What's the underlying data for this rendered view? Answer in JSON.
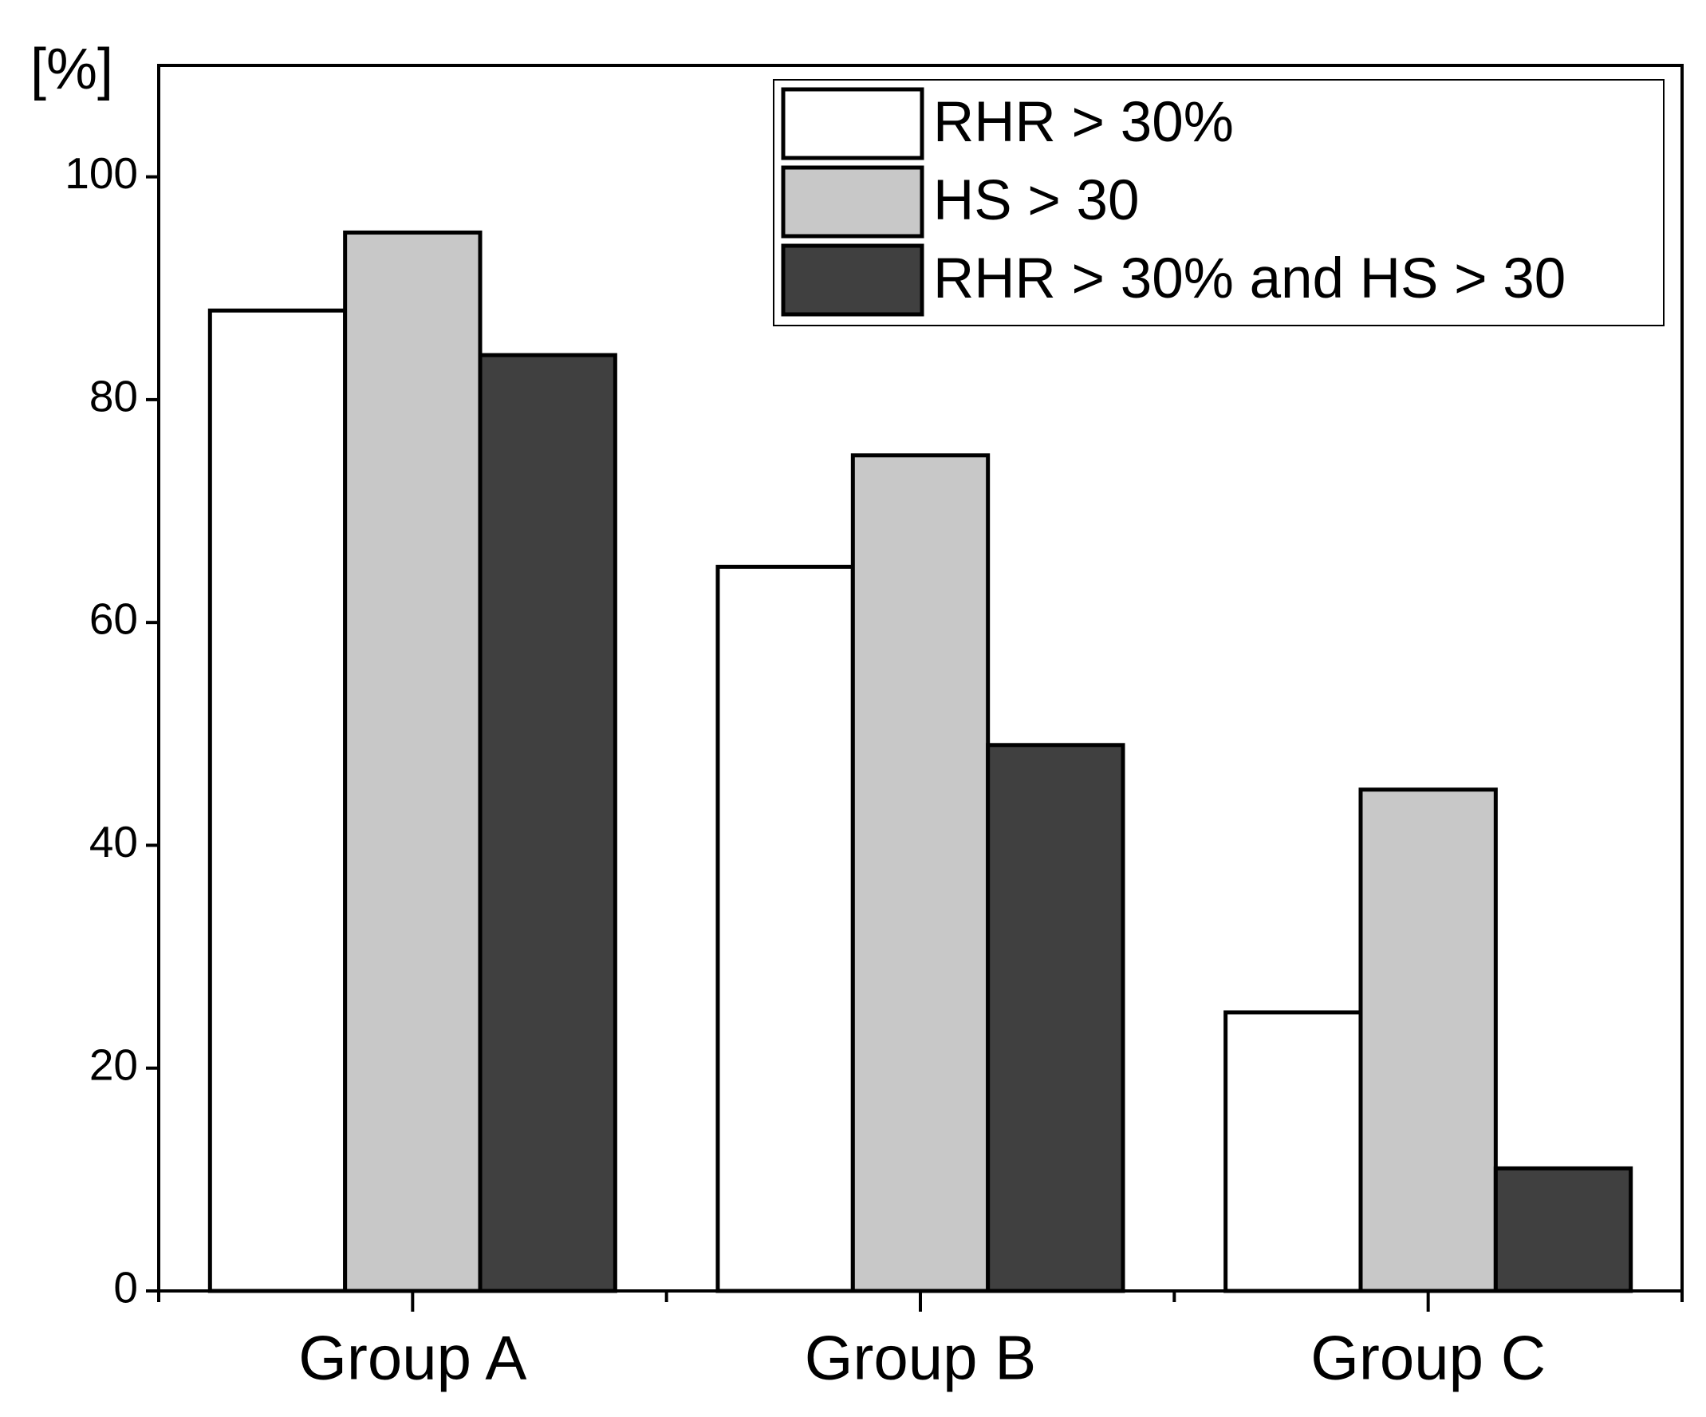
{
  "chart_data": {
    "type": "bar",
    "y_label": "[%]",
    "categories": [
      "Group A",
      "Group B",
      "Group C"
    ],
    "series": [
      {
        "name": "RHR > 30%",
        "color": "#ffffff",
        "values": [
          88,
          65,
          25
        ]
      },
      {
        "name": "HS > 30",
        "color": "#c8c8c8",
        "values": [
          95,
          75,
          45
        ]
      },
      {
        "name": "RHR > 30% and HS > 30",
        "color": "#404040",
        "values": [
          84,
          49,
          11
        ]
      }
    ],
    "ylim": [
      0,
      110
    ],
    "yticks": [
      0,
      20,
      40,
      60,
      80,
      100
    ],
    "legend": "top-right"
  }
}
